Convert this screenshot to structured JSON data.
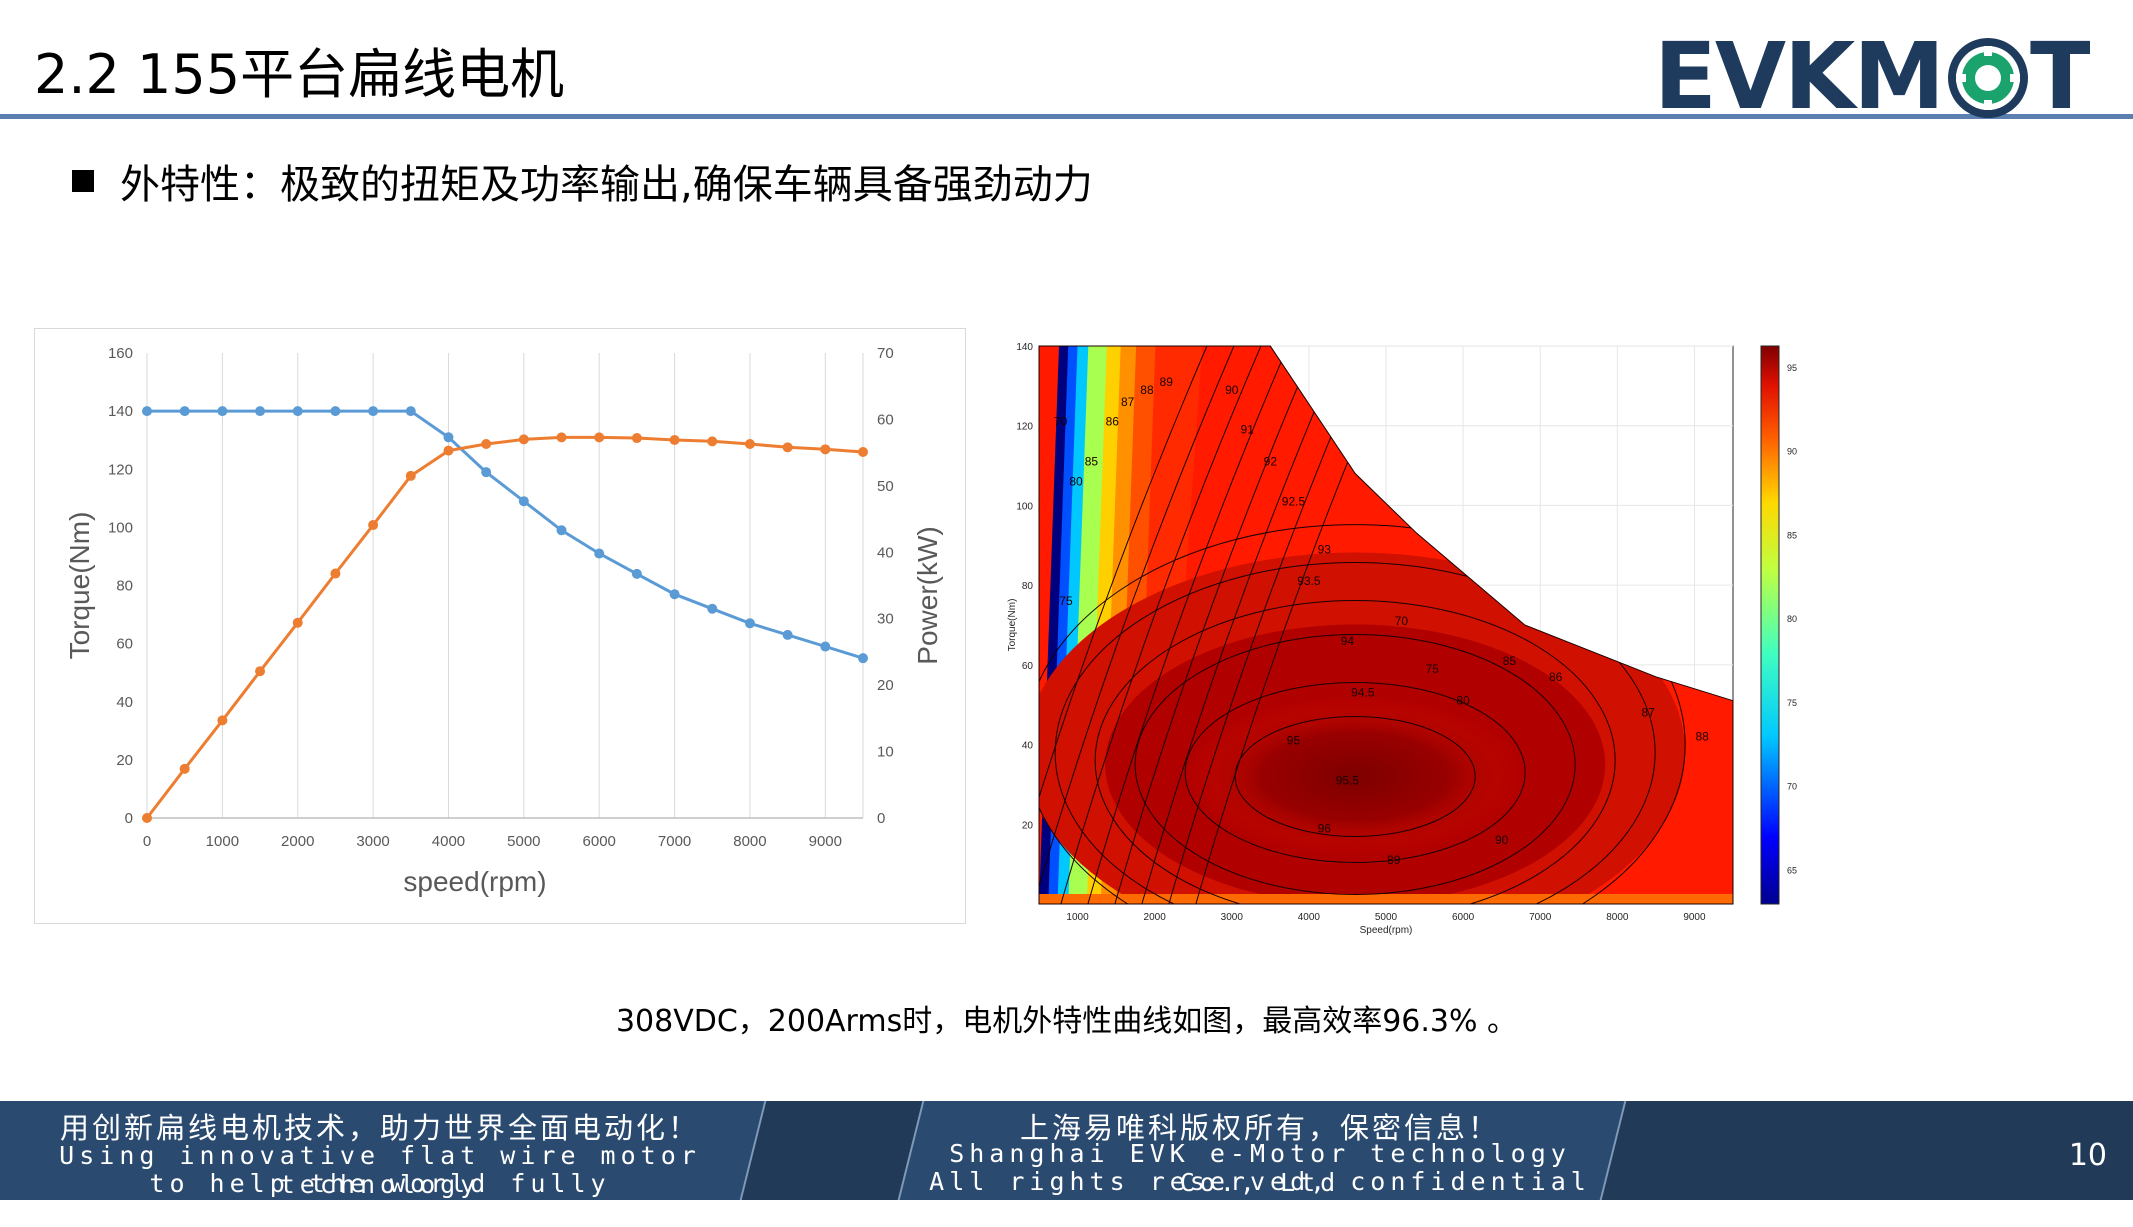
{
  "header": {
    "title": "2.2 155平台扁线电机",
    "logo_text": "EVKMOT",
    "logo_color": "#1e3a5c",
    "logo_accent": "#1aa36c"
  },
  "bullet": "外特性：极致的扭矩及功率输出,确保车辆具备强劲动力",
  "caption": "308VDC，200Arms时，电机外特性曲线如图，最高效率96.3% 。",
  "footer": {
    "left_cn": "用创新扁线电机技术，助力世界全面电动化！",
    "left_en1": "Using innovative flat wire motor technology",
    "left_en2": "to help the world fully electrified!",
    "right_cn": "上海易唯科版权所有，保密信息！",
    "right_en1": "Shanghai EVK e-Motor technology Co., Ltd",
    "right_en2": "All rights reserved,  confidential information!",
    "page_number": "10"
  },
  "chart_data": [
    {
      "type": "line",
      "xlabel": "speed(rpm)",
      "ylabel": "Torque(Nm)",
      "y2label": "Power(kW)",
      "xlim": [
        0,
        9500
      ],
      "ylim": [
        0,
        160
      ],
      "y2lim": [
        0,
        70
      ],
      "xticks": [
        0,
        1000,
        2000,
        3000,
        4000,
        5000,
        6000,
        7000,
        8000,
        9000
      ],
      "yticks": [
        0,
        20,
        40,
        60,
        80,
        100,
        120,
        140,
        160
      ],
      "y2ticks": [
        0,
        10,
        20,
        30,
        40,
        50,
        60,
        70
      ],
      "grid": "vertical",
      "series": [
        {
          "name": "",
          "axis": "left",
          "color": "#5b9bd5",
          "x": [
            0,
            500,
            1000,
            1500,
            2000,
            2500,
            3000,
            3500,
            4000,
            4500,
            5000,
            5500,
            6000,
            6500,
            7000,
            7500,
            8000,
            8500,
            9000,
            9500
          ],
          "y": [
            140,
            140,
            140,
            140,
            140,
            140,
            140,
            140,
            131,
            119,
            109,
            99,
            91,
            84,
            77,
            72,
            67,
            63,
            59,
            55
          ]
        },
        {
          "name": "",
          "axis": "right",
          "color": "#ed7d31",
          "x": [
            0,
            500,
            1000,
            1500,
            2000,
            2500,
            3000,
            3500,
            4000,
            4500,
            5000,
            5500,
            6000,
            6500,
            7000,
            7500,
            8000,
            8500,
            9000,
            9500
          ],
          "y": [
            0,
            7.4,
            14.7,
            22.1,
            29.4,
            36.8,
            44.1,
            51.5,
            55.3,
            56.3,
            57.0,
            57.3,
            57.3,
            57.2,
            56.9,
            56.7,
            56.3,
            55.8,
            55.5,
            55.1
          ]
        }
      ]
    },
    {
      "type": "heatmap",
      "xlabel": "Speed(rpm)",
      "ylabel": "Torque(Nm)",
      "xlim": [
        500,
        9500
      ],
      "ylim": [
        0,
        140
      ],
      "xticks": [
        1000,
        2000,
        3000,
        4000,
        5000,
        6000,
        7000,
        8000,
        9000
      ],
      "yticks": [
        20,
        40,
        60,
        80,
        100,
        120,
        140
      ],
      "colorbar_ticks": [
        65,
        70,
        75,
        80,
        85,
        90,
        95
      ],
      "colorbar_range": [
        63,
        96.3
      ],
      "peak_efficiency": 96.3,
      "boundary": {
        "x": [
          500,
          3500,
          4600,
          5400,
          6800,
          8500,
          9500
        ],
        "y": [
          140,
          140,
          108,
          93,
          70,
          57,
          51
        ]
      },
      "contour_labels": [
        "70",
        "75",
        "80",
        "85",
        "86",
        "87",
        "88",
        "89",
        "90",
        "91",
        "92",
        "92.5",
        "93",
        "93.5",
        "94",
        "94.5",
        "95",
        "95.5",
        "96"
      ]
    }
  ]
}
